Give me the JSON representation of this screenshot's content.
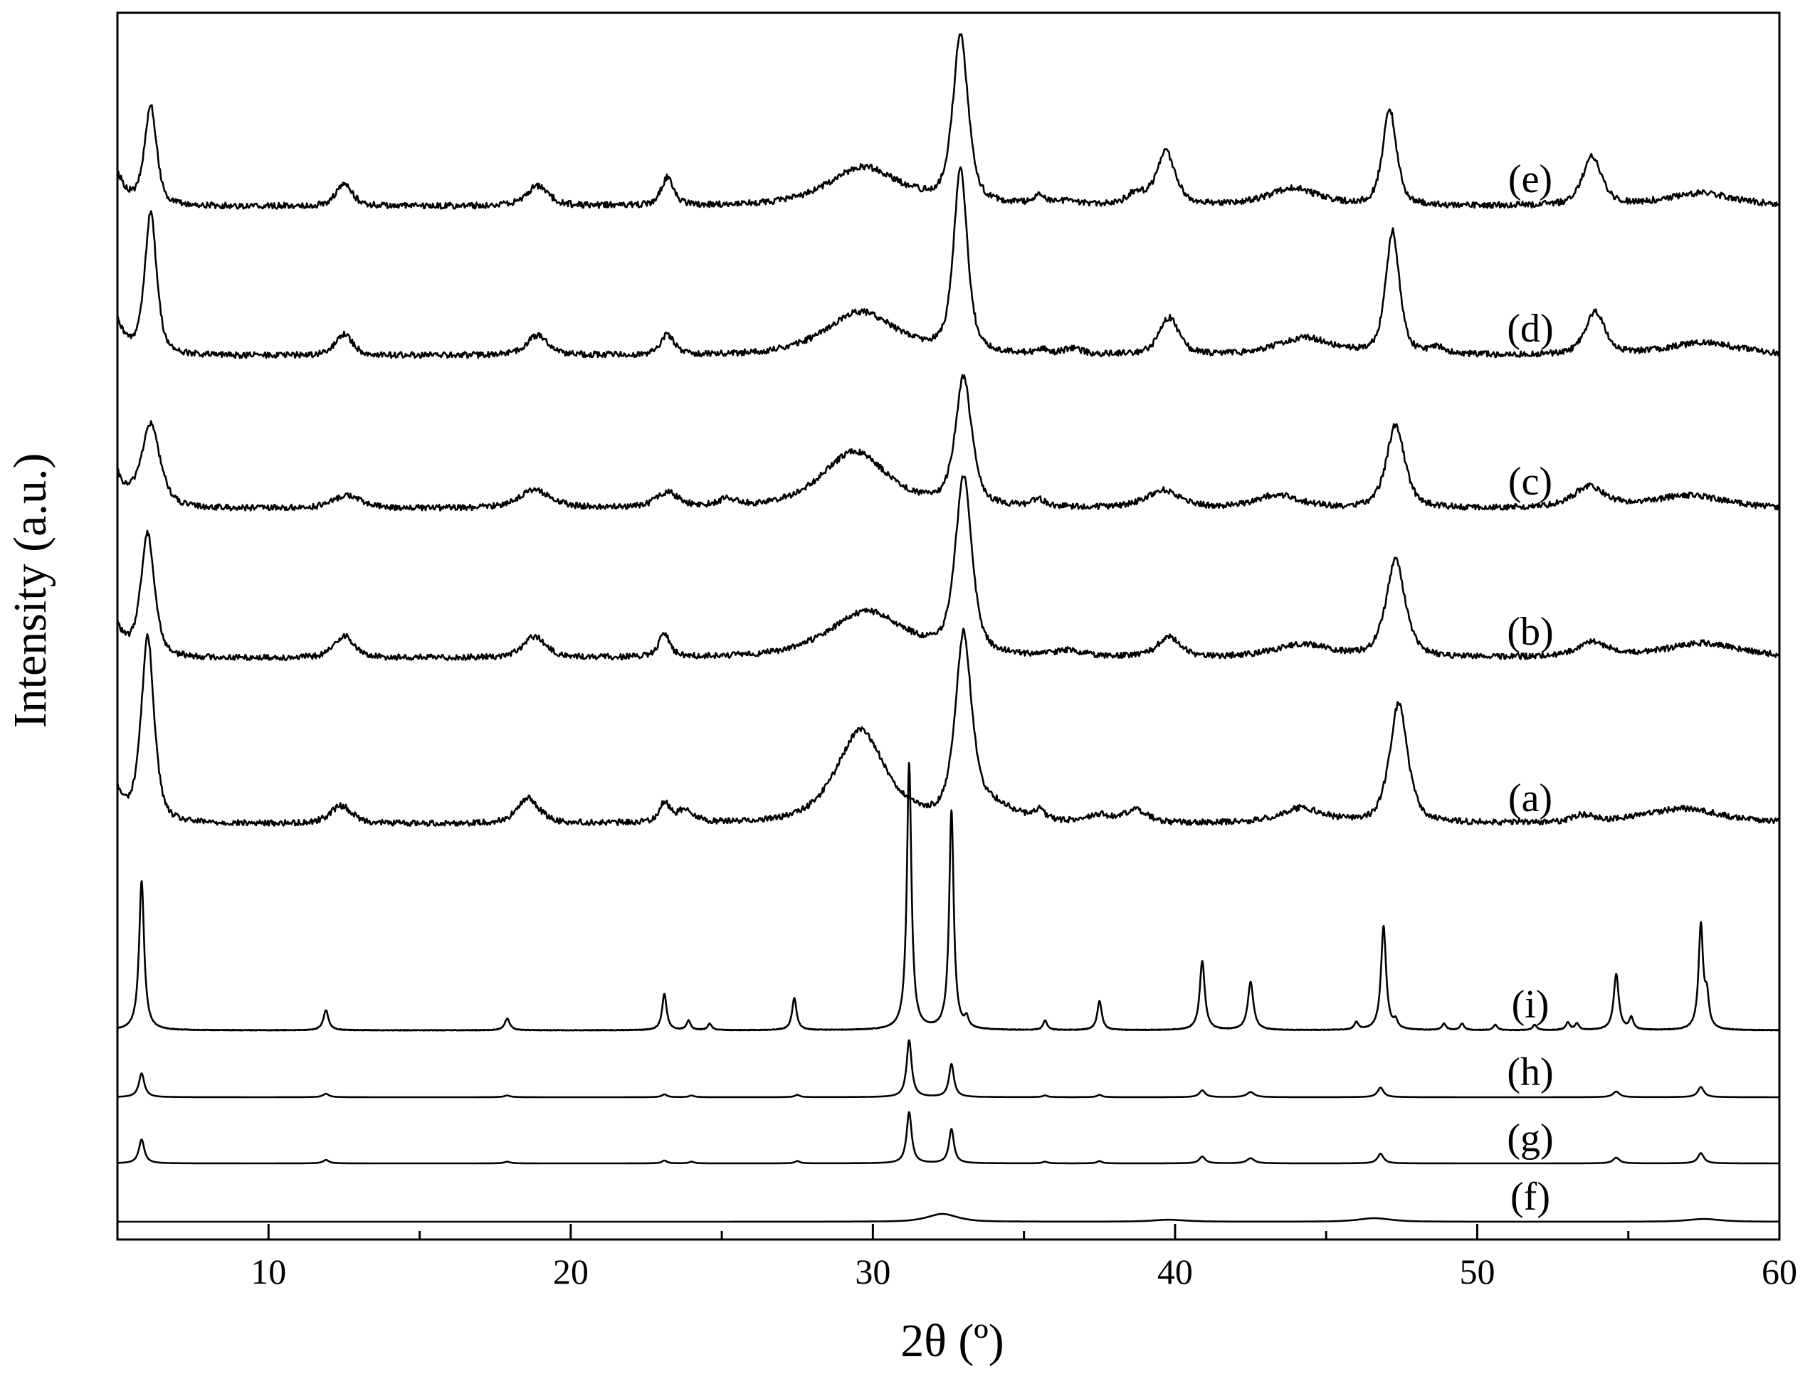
{
  "chart_data": {
    "type": "line",
    "xlabel": "2θ (º)",
    "ylabel": "Intensity (a.u.)",
    "xlim": [
      5,
      60
    ],
    "xticks": [
      10,
      20,
      30,
      40,
      50,
      60
    ],
    "xtick_labels": [
      "10",
      "20",
      "30",
      "40",
      "50",
      "60"
    ],
    "grid": false,
    "legend": "none (labels printed beside each trace)",
    "series": [
      {
        "name": "(f)",
        "style": "smooth",
        "noise": 0.0,
        "peaks": [
          {
            "x": 32.3,
            "h": 0.1,
            "w": 0.55
          },
          {
            "x": 39.8,
            "h": 0.025,
            "w": 0.6
          },
          {
            "x": 46.6,
            "h": 0.045,
            "w": 0.6
          },
          {
            "x": 57.5,
            "h": 0.035,
            "w": 0.6
          }
        ]
      },
      {
        "name": "(g)",
        "style": "sharp",
        "noise": 0.0,
        "peaks": [
          {
            "x": 5.8,
            "h": 0.42,
            "w": 0.11
          },
          {
            "x": 11.9,
            "h": 0.06,
            "w": 0.12
          },
          {
            "x": 17.9,
            "h": 0.03,
            "w": 0.12
          },
          {
            "x": 23.1,
            "h": 0.05,
            "w": 0.1
          },
          {
            "x": 24.0,
            "h": 0.03,
            "w": 0.1
          },
          {
            "x": 27.5,
            "h": 0.04,
            "w": 0.1
          },
          {
            "x": 31.2,
            "h": 0.9,
            "w": 0.1
          },
          {
            "x": 32.6,
            "h": 0.6,
            "w": 0.1
          },
          {
            "x": 35.7,
            "h": 0.03,
            "w": 0.1
          },
          {
            "x": 37.5,
            "h": 0.04,
            "w": 0.1
          },
          {
            "x": 40.9,
            "h": 0.12,
            "w": 0.12
          },
          {
            "x": 42.5,
            "h": 0.09,
            "w": 0.15
          },
          {
            "x": 46.8,
            "h": 0.17,
            "w": 0.12
          },
          {
            "x": 54.6,
            "h": 0.1,
            "w": 0.13
          },
          {
            "x": 57.4,
            "h": 0.18,
            "w": 0.12
          }
        ]
      },
      {
        "name": "(h)",
        "style": "sharp",
        "noise": 0.0,
        "peaks": [
          {
            "x": 5.8,
            "h": 0.42,
            "w": 0.11
          },
          {
            "x": 11.9,
            "h": 0.06,
            "w": 0.12
          },
          {
            "x": 17.9,
            "h": 0.03,
            "w": 0.12
          },
          {
            "x": 23.1,
            "h": 0.05,
            "w": 0.1
          },
          {
            "x": 24.0,
            "h": 0.03,
            "w": 0.1
          },
          {
            "x": 27.5,
            "h": 0.04,
            "w": 0.1
          },
          {
            "x": 31.2,
            "h": 1.0,
            "w": 0.1
          },
          {
            "x": 32.6,
            "h": 0.58,
            "w": 0.1
          },
          {
            "x": 35.7,
            "h": 0.03,
            "w": 0.1
          },
          {
            "x": 37.5,
            "h": 0.04,
            "w": 0.1
          },
          {
            "x": 40.9,
            "h": 0.12,
            "w": 0.12
          },
          {
            "x": 42.5,
            "h": 0.09,
            "w": 0.15
          },
          {
            "x": 46.8,
            "h": 0.17,
            "w": 0.12
          },
          {
            "x": 54.6,
            "h": 0.1,
            "w": 0.13
          },
          {
            "x": 57.4,
            "h": 0.18,
            "w": 0.12
          }
        ]
      },
      {
        "name": "(i)",
        "style": "sharp",
        "noise": 0.006,
        "peaks": [
          {
            "x": 5.8,
            "h": 2.8,
            "w": 0.1
          },
          {
            "x": 11.9,
            "h": 0.38,
            "w": 0.1
          },
          {
            "x": 17.9,
            "h": 0.22,
            "w": 0.1
          },
          {
            "x": 23.1,
            "h": 0.68,
            "w": 0.09
          },
          {
            "x": 23.9,
            "h": 0.18,
            "w": 0.08
          },
          {
            "x": 24.6,
            "h": 0.12,
            "w": 0.08
          },
          {
            "x": 27.4,
            "h": 0.6,
            "w": 0.09
          },
          {
            "x": 31.2,
            "h": 5.0,
            "w": 0.09
          },
          {
            "x": 32.6,
            "h": 4.1,
            "w": 0.09
          },
          {
            "x": 33.1,
            "h": 0.18,
            "w": 0.08
          },
          {
            "x": 35.7,
            "h": 0.18,
            "w": 0.08
          },
          {
            "x": 37.5,
            "h": 0.55,
            "w": 0.09
          },
          {
            "x": 40.9,
            "h": 1.3,
            "w": 0.1
          },
          {
            "x": 42.5,
            "h": 0.9,
            "w": 0.11
          },
          {
            "x": 46.0,
            "h": 0.14,
            "w": 0.08
          },
          {
            "x": 46.9,
            "h": 1.95,
            "w": 0.1
          },
          {
            "x": 47.3,
            "h": 0.14,
            "w": 0.08
          },
          {
            "x": 48.9,
            "h": 0.12,
            "w": 0.08
          },
          {
            "x": 49.5,
            "h": 0.12,
            "w": 0.08
          },
          {
            "x": 50.6,
            "h": 0.1,
            "w": 0.08
          },
          {
            "x": 51.9,
            "h": 0.1,
            "w": 0.08
          },
          {
            "x": 53.0,
            "h": 0.14,
            "w": 0.08
          },
          {
            "x": 53.3,
            "h": 0.12,
            "w": 0.08
          },
          {
            "x": 54.6,
            "h": 1.05,
            "w": 0.1
          },
          {
            "x": 55.1,
            "h": 0.22,
            "w": 0.08
          },
          {
            "x": 57.4,
            "h": 1.95,
            "w": 0.09
          },
          {
            "x": 57.6,
            "h": 0.55,
            "w": 0.08
          }
        ]
      },
      {
        "name": "(a)",
        "style": "broad",
        "noise": 0.05,
        "peaks": [
          {
            "x": 6.0,
            "h": 3.1,
            "w": 0.24
          },
          {
            "x": 12.4,
            "h": 0.3,
            "w": 0.4
          },
          {
            "x": 18.6,
            "h": 0.42,
            "w": 0.4
          },
          {
            "x": 23.1,
            "h": 0.32,
            "w": 0.2
          },
          {
            "x": 23.8,
            "h": 0.22,
            "w": 0.3
          },
          {
            "x": 29.6,
            "h": 1.55,
            "w": 0.9
          },
          {
            "x": 33.0,
            "h": 3.05,
            "w": 0.3
          },
          {
            "x": 34.0,
            "h": 0.25,
            "w": 0.8
          },
          {
            "x": 35.5,
            "h": 0.15,
            "w": 0.2
          },
          {
            "x": 37.5,
            "h": 0.12,
            "w": 0.4
          },
          {
            "x": 38.7,
            "h": 0.22,
            "w": 0.4
          },
          {
            "x": 44.2,
            "h": 0.25,
            "w": 0.8
          },
          {
            "x": 47.4,
            "h": 2.0,
            "w": 0.33
          },
          {
            "x": 53.5,
            "h": 0.12,
            "w": 0.4
          },
          {
            "x": 56.8,
            "h": 0.25,
            "w": 1.5
          }
        ]
      },
      {
        "name": "(b)",
        "style": "broad",
        "noise": 0.05,
        "peaks": [
          {
            "x": 6.0,
            "h": 2.1,
            "w": 0.25
          },
          {
            "x": 12.5,
            "h": 0.38,
            "w": 0.35
          },
          {
            "x": 18.8,
            "h": 0.36,
            "w": 0.4
          },
          {
            "x": 23.1,
            "h": 0.4,
            "w": 0.2
          },
          {
            "x": 29.8,
            "h": 0.78,
            "w": 1.4
          },
          {
            "x": 33.0,
            "h": 3.0,
            "w": 0.3
          },
          {
            "x": 36.5,
            "h": 0.1,
            "w": 0.5
          },
          {
            "x": 39.8,
            "h": 0.35,
            "w": 0.4
          },
          {
            "x": 44.2,
            "h": 0.22,
            "w": 1.0
          },
          {
            "x": 47.3,
            "h": 1.65,
            "w": 0.35
          },
          {
            "x": 53.8,
            "h": 0.25,
            "w": 0.6
          },
          {
            "x": 57.5,
            "h": 0.25,
            "w": 1.4
          }
        ]
      },
      {
        "name": "(c)",
        "style": "broad",
        "noise": 0.05,
        "peaks": [
          {
            "x": 6.1,
            "h": 1.4,
            "w": 0.35
          },
          {
            "x": 12.6,
            "h": 0.22,
            "w": 0.5
          },
          {
            "x": 18.8,
            "h": 0.3,
            "w": 0.6
          },
          {
            "x": 23.2,
            "h": 0.25,
            "w": 0.4
          },
          {
            "x": 25.2,
            "h": 0.12,
            "w": 0.4
          },
          {
            "x": 29.4,
            "h": 0.95,
            "w": 1.2
          },
          {
            "x": 33.0,
            "h": 2.15,
            "w": 0.3
          },
          {
            "x": 35.5,
            "h": 0.12,
            "w": 0.25
          },
          {
            "x": 39.6,
            "h": 0.3,
            "w": 0.6
          },
          {
            "x": 43.4,
            "h": 0.22,
            "w": 0.8
          },
          {
            "x": 47.3,
            "h": 1.4,
            "w": 0.33
          },
          {
            "x": 53.7,
            "h": 0.35,
            "w": 0.6
          },
          {
            "x": 57.0,
            "h": 0.22,
            "w": 1.3
          }
        ]
      },
      {
        "name": "(d)",
        "style": "broad",
        "noise": 0.05,
        "peaks": [
          {
            "x": 6.1,
            "h": 2.3,
            "w": 0.22
          },
          {
            "x": 12.5,
            "h": 0.35,
            "w": 0.3
          },
          {
            "x": 18.9,
            "h": 0.32,
            "w": 0.4
          },
          {
            "x": 23.2,
            "h": 0.32,
            "w": 0.25
          },
          {
            "x": 29.6,
            "h": 0.7,
            "w": 1.3
          },
          {
            "x": 32.9,
            "h": 3.0,
            "w": 0.25
          },
          {
            "x": 35.6,
            "h": 0.08,
            "w": 0.2
          },
          {
            "x": 36.6,
            "h": 0.1,
            "w": 0.3
          },
          {
            "x": 39.8,
            "h": 0.6,
            "w": 0.35
          },
          {
            "x": 44.3,
            "h": 0.28,
            "w": 1.0
          },
          {
            "x": 47.2,
            "h": 2.0,
            "w": 0.25
          },
          {
            "x": 48.7,
            "h": 0.1,
            "w": 0.3
          },
          {
            "x": 53.9,
            "h": 0.7,
            "w": 0.35
          },
          {
            "x": 57.5,
            "h": 0.2,
            "w": 1.4
          }
        ]
      },
      {
        "name": "(e)",
        "style": "broad",
        "noise": 0.05,
        "peaks": [
          {
            "x": 6.1,
            "h": 1.6,
            "w": 0.22
          },
          {
            "x": 12.5,
            "h": 0.35,
            "w": 0.3
          },
          {
            "x": 18.9,
            "h": 0.32,
            "w": 0.4
          },
          {
            "x": 23.2,
            "h": 0.45,
            "w": 0.22
          },
          {
            "x": 29.7,
            "h": 0.62,
            "w": 1.3
          },
          {
            "x": 32.9,
            "h": 2.7,
            "w": 0.28
          },
          {
            "x": 35.5,
            "h": 0.16,
            "w": 0.2
          },
          {
            "x": 36.5,
            "h": 0.08,
            "w": 0.3
          },
          {
            "x": 38.7,
            "h": 0.18,
            "w": 0.3
          },
          {
            "x": 39.7,
            "h": 0.85,
            "w": 0.35
          },
          {
            "x": 43.9,
            "h": 0.28,
            "w": 0.9
          },
          {
            "x": 47.1,
            "h": 1.55,
            "w": 0.25
          },
          {
            "x": 53.8,
            "h": 0.78,
            "w": 0.35
          },
          {
            "x": 57.4,
            "h": 0.2,
            "w": 1.3
          }
        ]
      }
    ]
  }
}
